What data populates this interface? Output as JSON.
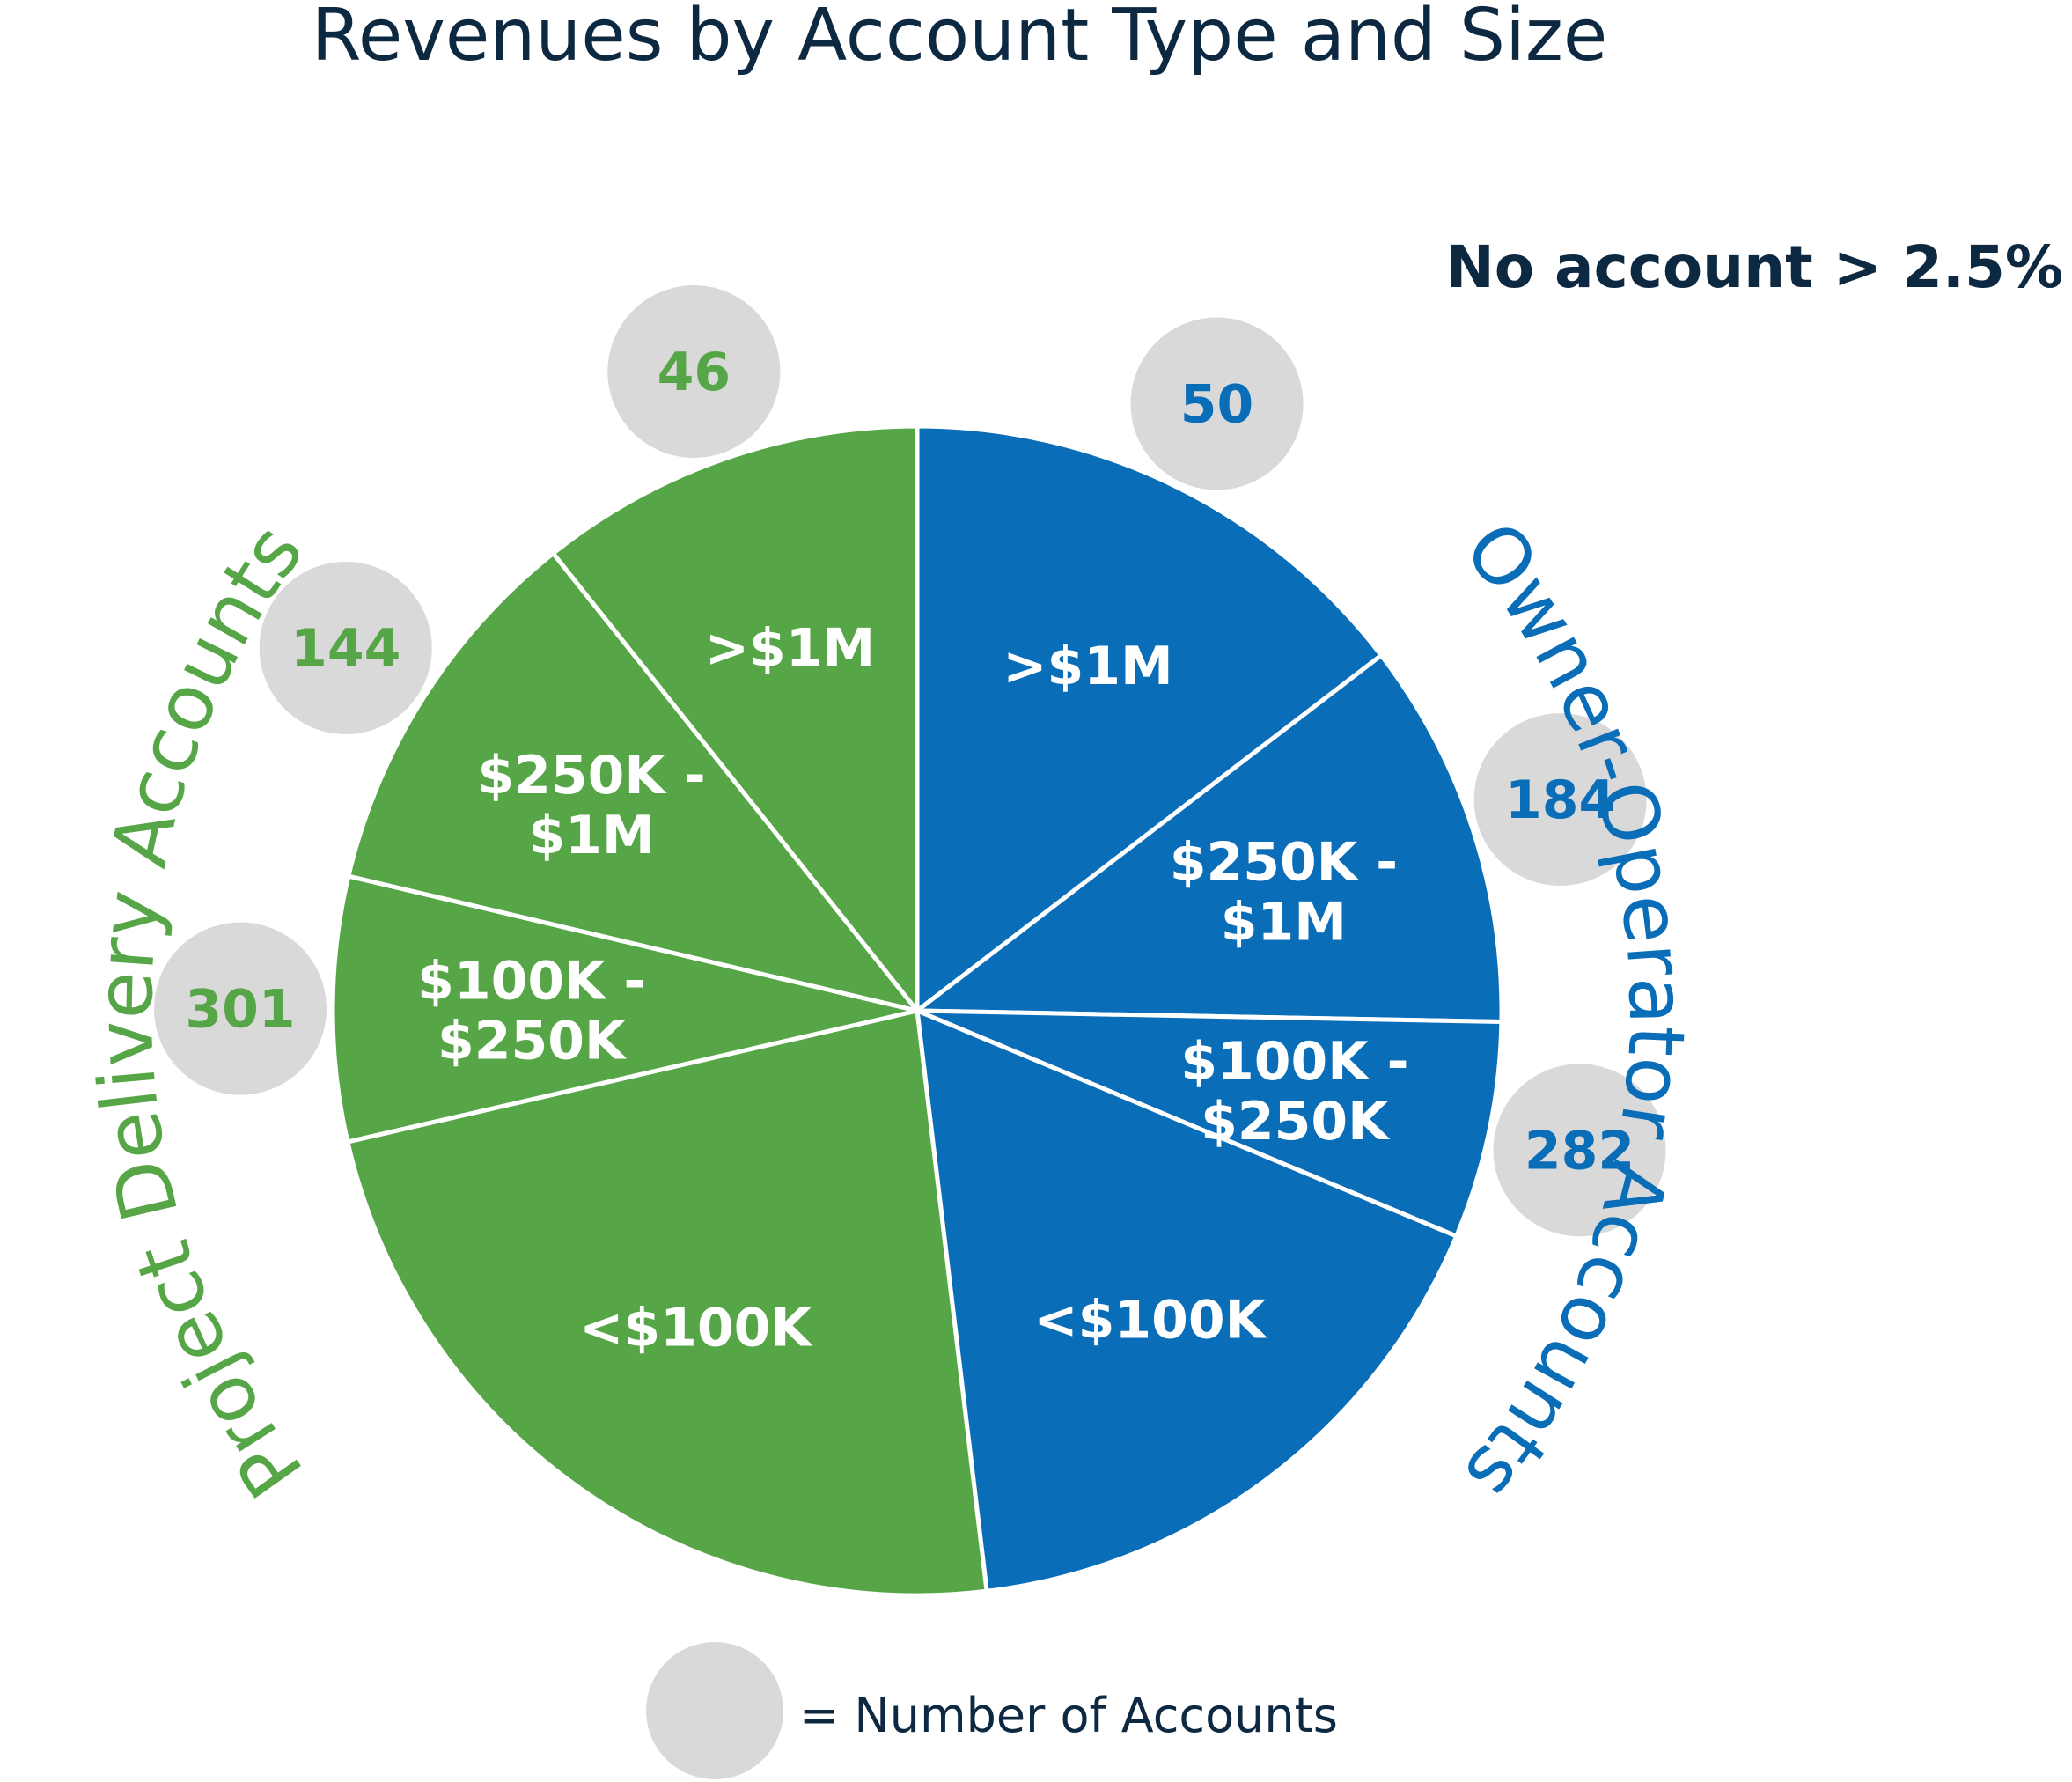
{
  "chart_data": {
    "type": "pie",
    "title": "Revenues by Account Type and Size",
    "note": "No account > 2.5%",
    "legend": {
      "marker": "circle",
      "label": "= Number of Accounts"
    },
    "colors": {
      "title": "#0d2841",
      "owner_operator": "#0a6db7",
      "project_delivery": "#56a647",
      "badge_fill": "#d9d9d9",
      "slice_label": "#ffffff",
      "separator": "#ffffff"
    },
    "groups": [
      {
        "name": "Owner-Operator Accounts",
        "color_key": "owner_operator",
        "slices": [
          {
            "label_lines": [
              ">$1M"
            ],
            "revenue_share_pct": 14.6,
            "accounts": "50"
          },
          {
            "label_lines": [
              "$250K -",
              "$1M"
            ],
            "revenue_share_pct": 10.7,
            "accounts": "184"
          },
          {
            "label_lines": [
              "$100K -",
              "$250K"
            ],
            "revenue_share_pct": 6.0,
            "accounts": "282"
          },
          {
            "label_lines": [
              "<$100K"
            ],
            "revenue_share_pct": 16.8,
            "accounts": null
          }
        ]
      },
      {
        "name": "Project Delivery Accounts",
        "color_key": "project_delivery",
        "slices": [
          {
            "label_lines": [
              "<$100K"
            ],
            "revenue_share_pct": 23.3,
            "accounts": null
          },
          {
            "label_lines": [
              "$100K -",
              "$250K"
            ],
            "revenue_share_pct": 7.3,
            "accounts": "301"
          },
          {
            "label_lines": [
              "$250K -",
              "$1M"
            ],
            "revenue_share_pct": 10.6,
            "accounts": "144"
          },
          {
            "label_lines": [
              ">$1M"
            ],
            "revenue_share_pct": 10.7,
            "accounts": "46"
          }
        ]
      }
    ]
  }
}
